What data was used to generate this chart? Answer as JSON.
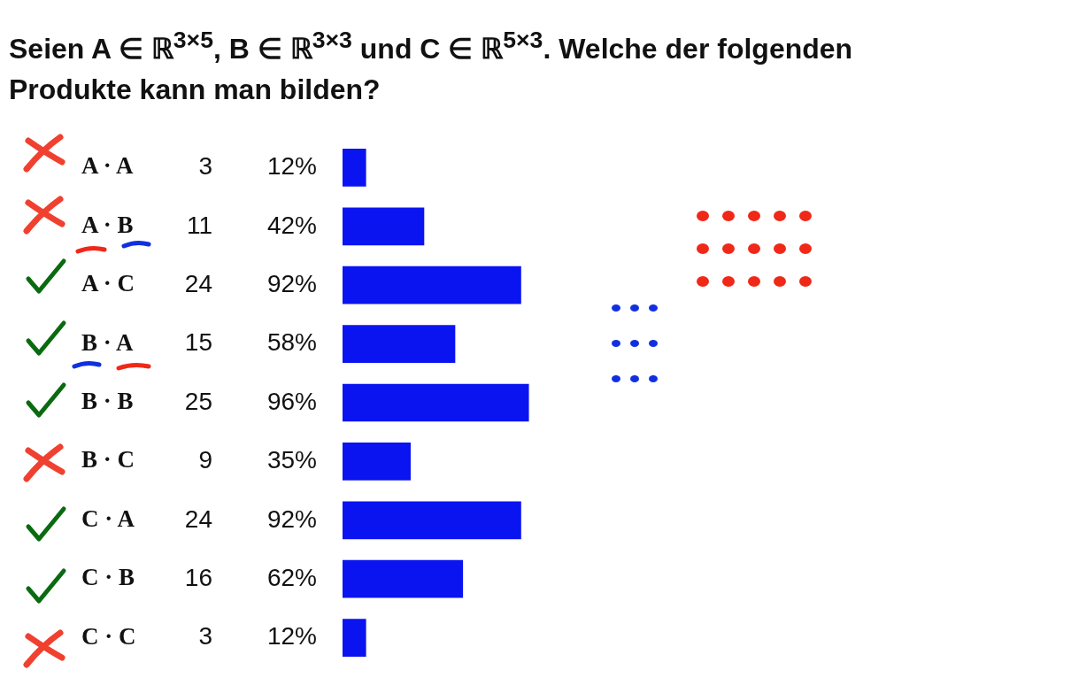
{
  "chart_data": {
    "type": "bar",
    "orientation": "horizontal",
    "title": "Seien A ∈ ℝ$^{3×5}$, B ∈ ℝ$^{3×3}$ und C ∈ ℝ$^{5×3}$. Welche der folgenden Produkte kann man bilden?",
    "categories": [
      "A · A",
      "A · B",
      "A · C",
      "B · A",
      "B · B",
      "B · C",
      "C · A",
      "C · B",
      "C · C"
    ],
    "values": [
      12,
      42,
      92,
      58,
      96,
      35,
      92,
      62,
      12
    ],
    "value_labels": [
      "12%",
      "42%",
      "92%",
      "58%",
      "96%",
      "35%",
      "92%",
      "62%",
      "12%"
    ],
    "color": "#0a14f0",
    "annotations": [
      "3",
      "11",
      "24",
      "15",
      "25",
      "9",
      "24",
      "16",
      "3"
    ],
    "grid": false,
    "legend": false,
    "tick_labels": "y"
  }
}
